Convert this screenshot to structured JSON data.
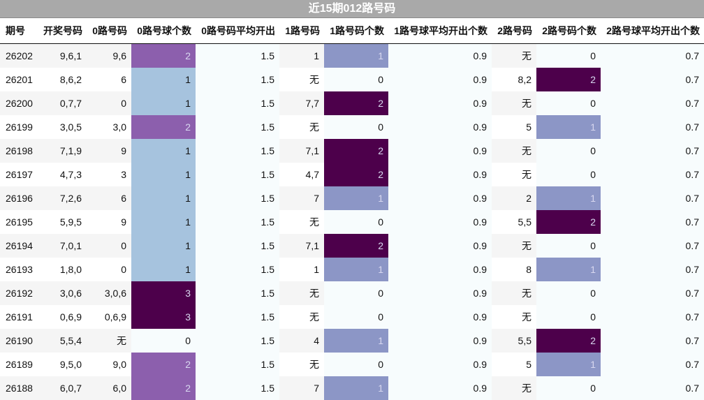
{
  "title": "近15期012路号码",
  "colors": {
    "count_0": "#f7fcfd",
    "count_1_zero_route": "#a6c3de",
    "count_1": "#8c96c6",
    "count_2_zero_route": "#8c5fad",
    "count_2": "#4d004b",
    "count_3": "#4d004b",
    "light_text": "#d8d8f0",
    "dark_text": "#111111"
  },
  "chart_data": {
    "type": "table",
    "title": "近15期012路号码",
    "columns": [
      "期号",
      "开奖号码",
      "0路号码",
      "0路号球个数",
      "0路号码平均开出",
      "1路号码",
      "1路号码个数",
      "1路号球平均开出个数",
      "2路号码",
      "2路号码个数",
      "2路号球平均开出个数"
    ],
    "rows": [
      [
        "26202",
        "9,6,1",
        "9,6",
        2,
        1.5,
        "1",
        1,
        0.9,
        "无",
        0,
        0.7
      ],
      [
        "26201",
        "8,6,2",
        "6",
        1,
        1.5,
        "无",
        0,
        0.9,
        "8,2",
        2,
        0.7
      ],
      [
        "26200",
        "0,7,7",
        "0",
        1,
        1.5,
        "7,7",
        2,
        0.9,
        "无",
        0,
        0.7
      ],
      [
        "26199",
        "3,0,5",
        "3,0",
        2,
        1.5,
        "无",
        0,
        0.9,
        "5",
        1,
        0.7
      ],
      [
        "26198",
        "7,1,9",
        "9",
        1,
        1.5,
        "7,1",
        2,
        0.9,
        "无",
        0,
        0.7
      ],
      [
        "26197",
        "4,7,3",
        "3",
        1,
        1.5,
        "4,7",
        2,
        0.9,
        "无",
        0,
        0.7
      ],
      [
        "26196",
        "7,2,6",
        "6",
        1,
        1.5,
        "7",
        1,
        0.9,
        "2",
        1,
        0.7
      ],
      [
        "26195",
        "5,9,5",
        "9",
        1,
        1.5,
        "无",
        0,
        0.9,
        "5,5",
        2,
        0.7
      ],
      [
        "26194",
        "7,0,1",
        "0",
        1,
        1.5,
        "7,1",
        2,
        0.9,
        "无",
        0,
        0.7
      ],
      [
        "26193",
        "1,8,0",
        "0",
        1,
        1.5,
        "1",
        1,
        0.9,
        "8",
        1,
        0.7
      ],
      [
        "26192",
        "3,0,6",
        "3,0,6",
        3,
        1.5,
        "无",
        0,
        0.9,
        "无",
        0,
        0.7
      ],
      [
        "26191",
        "0,6,9",
        "0,6,9",
        3,
        1.5,
        "无",
        0,
        0.9,
        "无",
        0,
        0.7
      ],
      [
        "26190",
        "5,5,4",
        "无",
        0,
        1.5,
        "4",
        1,
        0.9,
        "5,5",
        2,
        0.7
      ],
      [
        "26189",
        "9,5,0",
        "9,0",
        2,
        1.5,
        "无",
        0,
        0.9,
        "5",
        1,
        0.7
      ],
      [
        "26188",
        "6,0,7",
        "6,0",
        2,
        1.5,
        "7",
        1,
        0.9,
        "无",
        0,
        0.7
      ]
    ]
  }
}
